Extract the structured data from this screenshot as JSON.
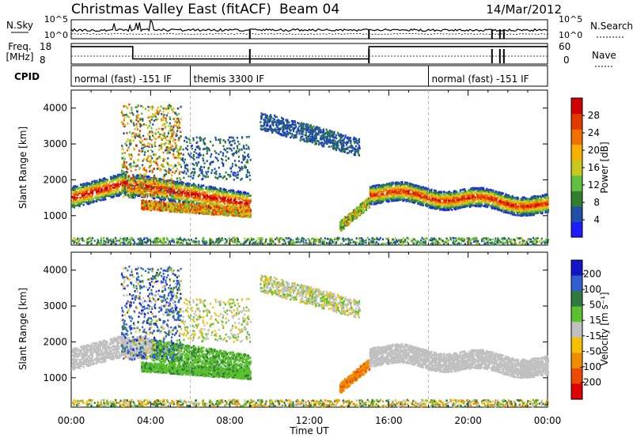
{
  "header": {
    "title": "Christmas Valley East (fitACF)",
    "beam": "Beam 04",
    "date": "14/Mar/2012"
  },
  "strip_nsky": {
    "label": "N.Sky",
    "tick_top": "10^5",
    "tick_bottom": "10^0",
    "right_tick_top": "10^5",
    "right_tick_bottom": "10^0",
    "right_label": "N.Search"
  },
  "strip_freq": {
    "label_line1": "Freq.",
    "label_line2": "[MHz]",
    "tick_top": "18",
    "tick_bottom": "8",
    "right_tick_top": "60",
    "right_tick_bottom": "0",
    "right_label": "Nave"
  },
  "cpid": {
    "label": "CPID",
    "segments": [
      {
        "text": "normal (fast) -151 IF",
        "start_hour": 0
      },
      {
        "text": "themis 3300 IF",
        "start_hour": 6
      },
      {
        "text": "normal (fast) -151 IF",
        "start_hour": 18
      }
    ]
  },
  "panel_power": {
    "ylabel": "Slant Range [km]",
    "yticks": [
      "1000",
      "2000",
      "3000",
      "4000"
    ],
    "colorbar_label": "Power [dB]",
    "colorbar_ticks": [
      "4",
      "8",
      "12",
      "16",
      "20",
      "24",
      "28"
    ],
    "colors": [
      "#1c1cff",
      "#1f4fa6",
      "#2f7f2f",
      "#5fbf3f",
      "#c8c81c",
      "#f7b000",
      "#f07000",
      "#e23a00",
      "#d00000"
    ]
  },
  "panel_velocity": {
    "ylabel": "Slant Range [km]",
    "yticks": [
      "1000",
      "2000",
      "3000",
      "4000"
    ],
    "colorbar_label": "Velocity [m s⁻¹]",
    "colorbar_ticks": [
      "200",
      "100",
      "50",
      "15",
      "-15",
      "-50",
      "-100",
      "-200"
    ],
    "colors": [
      "#1414c8",
      "#2f5fd0",
      "#2e7a3f",
      "#5cc12e",
      "#c0c0c0",
      "#f4c000",
      "#f08c00",
      "#ec4a00",
      "#e00000"
    ]
  },
  "xaxis": {
    "label": "Time UT",
    "ticks": [
      "00:00",
      "04:00",
      "08:00",
      "12:00",
      "16:00",
      "20:00",
      "00:00"
    ],
    "range_hours": [
      0,
      24
    ]
  },
  "chart_data": [
    {
      "type": "line",
      "panel": "N.Sky / N.Search",
      "x": [
        0,
        24
      ],
      "note_series": [
        {
          "name": "N.Sky",
          "approx_level_log10": 2.5
        },
        {
          "name": "N.Search",
          "approx_level_log10": 1.5
        }
      ]
    },
    {
      "type": "line",
      "panel": "Freq / Nave",
      "series": [
        {
          "name": "Freq.",
          "x": [
            0,
            3.1,
            3.1,
            15,
            15,
            24
          ],
          "values": [
            16.5,
            16.5,
            10.5,
            10.5,
            16.5,
            16.5
          ]
        }
      ],
      "ylim": [
        8,
        18
      ]
    },
    {
      "type": "heatmap",
      "title": "Power",
      "xlabel": "Time UT",
      "ylabel": "Slant Range [km]",
      "xlim": [
        0,
        24
      ],
      "ylim": [
        180,
        4500
      ],
      "zlim": [
        0,
        30
      ],
      "features": [
        {
          "time_start": 0,
          "time_end": 9,
          "range_start": 1300,
          "range_end": 2100,
          "peak_power": 28
        },
        {
          "time_start": 3.5,
          "time_end": 9,
          "range_start": 800,
          "range_end": 1300,
          "peak_power": 24
        },
        {
          "time_start": 9.5,
          "time_end": 14.5,
          "range_start": 2800,
          "range_end": 3900,
          "peak_power": 6
        },
        {
          "time_start": 13.5,
          "time_end": 15,
          "range_start": 700,
          "range_end": 1400,
          "peak_power": 18
        },
        {
          "time_start": 15,
          "time_end": 24,
          "range_start": 1100,
          "range_end": 1900,
          "peak_power": 26
        }
      ]
    },
    {
      "type": "heatmap",
      "title": "Velocity",
      "xlabel": "Time UT",
      "ylabel": "Slant Range [km]",
      "xlim": [
        0,
        24
      ],
      "ylim": [
        180,
        4500
      ],
      "zlim": [
        -200,
        200
      ],
      "features": [
        {
          "time_start": 0,
          "time_end": 6,
          "range_start": 1300,
          "range_end": 2100,
          "velocity": 0
        },
        {
          "time_start": 2.5,
          "time_end": 5.5,
          "range_start": 1500,
          "range_end": 4000,
          "velocity": 150
        },
        {
          "time_start": 4,
          "time_end": 9,
          "range_start": 800,
          "range_end": 1500,
          "velocity": 40
        },
        {
          "time_start": 13.5,
          "time_end": 14.5,
          "range_start": 700,
          "range_end": 1300,
          "velocity": -80
        },
        {
          "time_start": 15,
          "time_end": 24,
          "range_start": 1100,
          "range_end": 1900,
          "velocity": 0
        }
      ]
    }
  ]
}
